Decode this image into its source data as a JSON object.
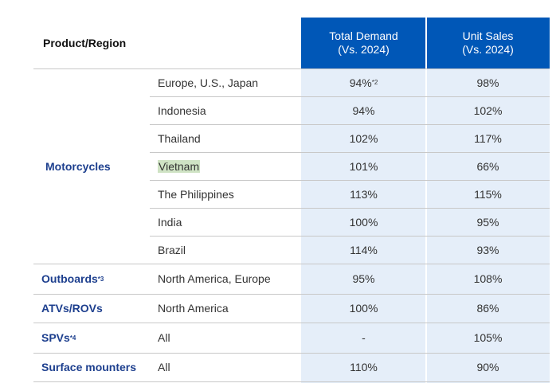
{
  "header": {
    "product_region": "Product/Region",
    "total_demand": [
      "Total Demand",
      "(Vs. 2024)"
    ],
    "unit_sales": [
      "Unit Sales",
      "(Vs. 2024)"
    ]
  },
  "groups": [
    {
      "product": "Motorcycles",
      "rows": [
        {
          "region": "Europe, U.S., Japan",
          "total_demand": "94%",
          "total_demand_note": "*2",
          "unit_sales": "98%"
        },
        {
          "region": "Indonesia",
          "total_demand": "94%",
          "unit_sales": "102%"
        },
        {
          "region": "Thailand",
          "total_demand": "102%",
          "unit_sales": "117%"
        },
        {
          "region": "Vietnam",
          "total_demand": "101%",
          "unit_sales": "66%"
        },
        {
          "region": "The Philippines",
          "total_demand": "113%",
          "unit_sales": "115%"
        },
        {
          "region": "India",
          "total_demand": "100%",
          "unit_sales": "95%"
        },
        {
          "region": "Brazil",
          "total_demand": "114%",
          "unit_sales": "93%"
        }
      ]
    },
    {
      "product": "Outboards",
      "note": "*3",
      "rows": [
        {
          "region": "North America, Europe",
          "total_demand": "95%",
          "unit_sales": "108%"
        }
      ]
    },
    {
      "product": "ATVs/ROVs",
      "rows": [
        {
          "region": "North America",
          "total_demand": "100%",
          "unit_sales": "86%"
        }
      ]
    },
    {
      "product": "SPVs",
      "note": "*4",
      "rows": [
        {
          "region": "All",
          "total_demand": "-",
          "unit_sales": "105%"
        }
      ]
    },
    {
      "product": "Surface mounters",
      "rows": [
        {
          "region": "All",
          "total_demand": "110%",
          "unit_sales": "90%"
        }
      ]
    }
  ]
}
